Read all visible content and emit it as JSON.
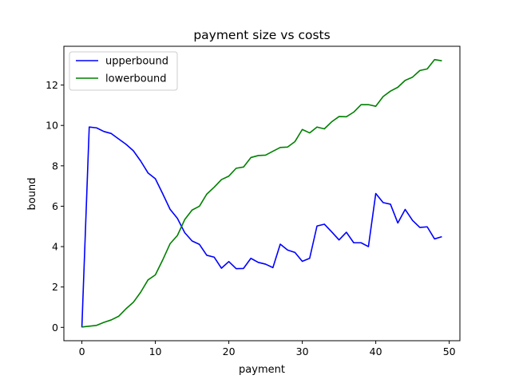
{
  "chart_data": {
    "type": "line",
    "title": "payment size vs costs",
    "xlabel": "payment",
    "ylabel": "bound",
    "xlim": [
      -2.45,
      51.45
    ],
    "ylim": [
      -0.66,
      13.92
    ],
    "xticks": [
      0,
      10,
      20,
      30,
      40,
      50
    ],
    "yticks": [
      0,
      2,
      4,
      6,
      8,
      10,
      12
    ],
    "xtick_labels": [
      "0",
      "10",
      "20",
      "30",
      "40",
      "50"
    ],
    "ytick_labels": [
      "0",
      "2",
      "4",
      "6",
      "8",
      "10",
      "12"
    ],
    "grid": false,
    "legend_position": "top-left",
    "x": [
      0,
      1,
      2,
      3,
      4,
      5,
      6,
      7,
      8,
      9,
      10,
      11,
      12,
      13,
      14,
      15,
      16,
      17,
      18,
      19,
      20,
      21,
      22,
      23,
      24,
      25,
      26,
      27,
      28,
      29,
      30,
      31,
      32,
      33,
      34,
      35,
      36,
      37,
      38,
      39,
      40,
      41,
      42,
      43,
      44,
      45,
      46,
      47,
      48,
      49
    ],
    "series": [
      {
        "name": "upperbound",
        "color": "#0000ff",
        "values": [
          0.0,
          9.92,
          9.88,
          9.7,
          9.6,
          9.33,
          9.07,
          8.75,
          8.24,
          7.65,
          7.36,
          6.62,
          5.85,
          5.4,
          4.69,
          4.28,
          4.11,
          3.57,
          3.48,
          2.93,
          3.26,
          2.91,
          2.92,
          3.42,
          3.22,
          3.13,
          2.96,
          4.12,
          3.83,
          3.71,
          3.27,
          3.42,
          5.02,
          5.11,
          4.73,
          4.33,
          4.71,
          4.19,
          4.19,
          4.0,
          6.63,
          6.18,
          6.1,
          5.17,
          5.84,
          5.3,
          4.95,
          4.98,
          4.38,
          4.49
        ]
      },
      {
        "name": "lowerbound",
        "color": "#008000",
        "values": [
          0.02,
          0.06,
          0.1,
          0.25,
          0.37,
          0.55,
          0.92,
          1.24,
          1.74,
          2.35,
          2.6,
          3.34,
          4.14,
          4.55,
          5.34,
          5.81,
          6.0,
          6.6,
          6.94,
          7.32,
          7.49,
          7.88,
          7.94,
          8.41,
          8.51,
          8.53,
          8.72,
          8.91,
          8.93,
          9.2,
          9.8,
          9.63,
          9.92,
          9.83,
          10.18,
          10.44,
          10.43,
          10.66,
          11.03,
          11.03,
          10.95,
          11.43,
          11.7,
          11.89,
          12.23,
          12.39,
          12.72,
          12.8,
          13.26,
          13.2
        ]
      }
    ]
  }
}
